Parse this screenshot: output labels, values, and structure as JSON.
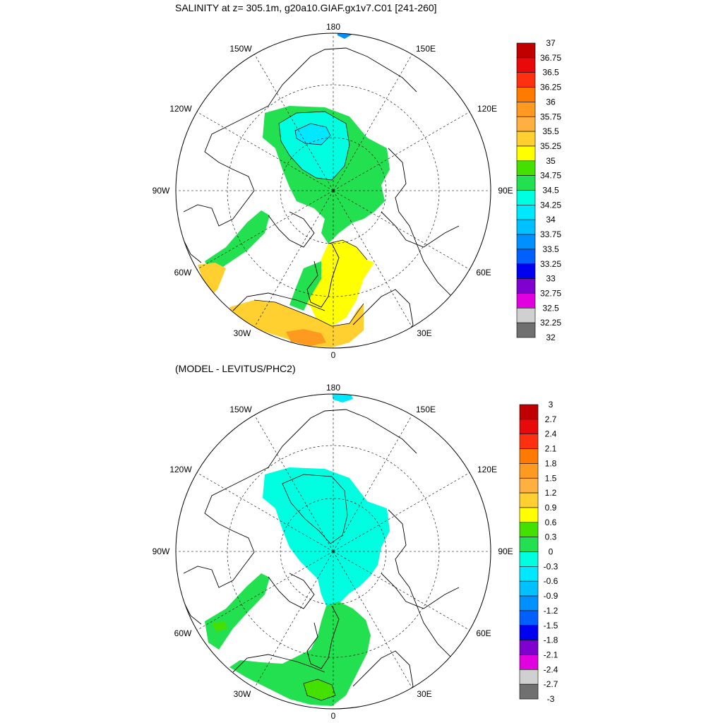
{
  "panel1": {
    "title": "SALINITY at z= 305.1m, g20a10.GIAF.gx1v7.C01 [241-260]",
    "lon_labels": [
      "180",
      "150E",
      "120E",
      "90E",
      "60E",
      "30E",
      "0",
      "30W",
      "60W",
      "90W",
      "120W",
      "150W"
    ],
    "colorbar": {
      "labels": [
        "37",
        "36.75",
        "36.5",
        "36.25",
        "36",
        "35.75",
        "35.5",
        "35.25",
        "35",
        "34.75",
        "34.5",
        "34.25",
        "34",
        "33.75",
        "33.5",
        "33.25",
        "33",
        "32.75",
        "32.5",
        "32.25",
        "32"
      ],
      "colors": [
        "#c00000",
        "#e80a0a",
        "#ff3010",
        "#ff7a00",
        "#ff9a20",
        "#ffb040",
        "#ffd030",
        "#ffff00",
        "#44e000",
        "#22e050",
        "#00ffe0",
        "#00e8ff",
        "#00c0ff",
        "#0090ff",
        "#0060ff",
        "#0000f0",
        "#8000d0",
        "#e000e0",
        "#d0d0d0",
        "#707070"
      ]
    }
  },
  "panel2": {
    "title": "(MODEL - LEVITUS/PHC2)",
    "lon_labels": [
      "180",
      "150E",
      "120E",
      "90E",
      "60E",
      "30E",
      "0",
      "30W",
      "60W",
      "90W",
      "120W",
      "150W"
    ],
    "colorbar": {
      "labels": [
        "3",
        "2.7",
        "2.4",
        "2.1",
        "1.8",
        "1.5",
        "1.2",
        "0.9",
        "0.6",
        "0.3",
        "0",
        "-0.3",
        "-0.6",
        "-0.9",
        "-1.2",
        "-1.5",
        "-1.8",
        "-2.1",
        "-2.4",
        "-2.7",
        "-3"
      ],
      "colors": [
        "#c00000",
        "#e80a0a",
        "#ff3010",
        "#ff7a00",
        "#ff9a20",
        "#ffb040",
        "#ffd030",
        "#ffff00",
        "#44e000",
        "#22e050",
        "#00ffe0",
        "#00e8ff",
        "#00c0ff",
        "#0090ff",
        "#0060ff",
        "#0000f0",
        "#8000d0",
        "#e000e0",
        "#d0d0d0",
        "#707070"
      ]
    }
  },
  "fill_colors": {
    "green": "#22e050",
    "cyan": "#00ffe0",
    "yellow": "#ffff00",
    "light_orange": "#ffd030",
    "orange": "#ff9a20",
    "light_green": "#44e000",
    "blue": "#0090ff"
  }
}
